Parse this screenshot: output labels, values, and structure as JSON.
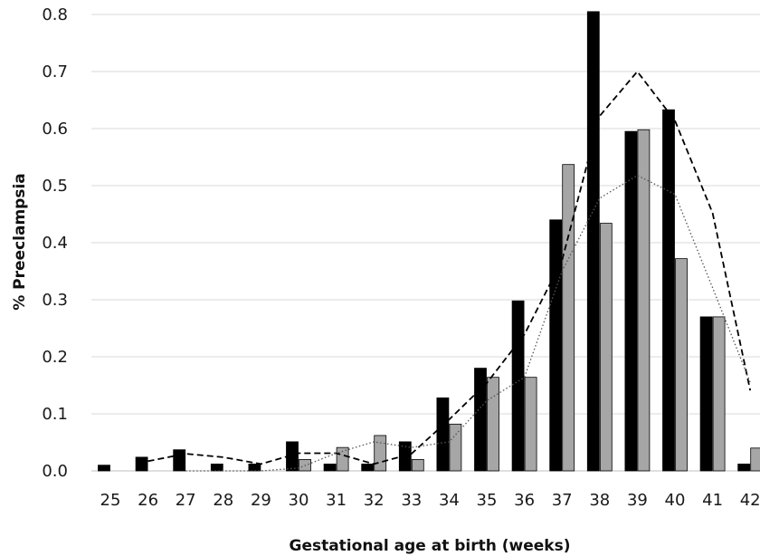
{
  "chart_data": {
    "type": "bar",
    "xlabel": "Gestational age at birth (weeks)",
    "ylabel": "% Preeclampsia",
    "categories": [
      "25",
      "26",
      "27",
      "28",
      "29",
      "30",
      "31",
      "32",
      "33",
      "34",
      "35",
      "36",
      "37",
      "38",
      "39",
      "40",
      "41",
      "42"
    ],
    "ylim": [
      0,
      0.8
    ],
    "yticks": [
      "0.0",
      "0.1",
      "0.2",
      "0.3",
      "0.4",
      "0.5",
      "0.6",
      "0.7",
      "0.8"
    ],
    "grid": true,
    "series": [
      {
        "kind": "bar",
        "color": "#000000",
        "values": [
          0.01,
          0.024,
          0.037,
          0.012,
          0.012,
          0.051,
          0.012,
          0.012,
          0.051,
          0.128,
          0.18,
          0.298,
          0.44,
          0.805,
          0.595,
          0.633,
          0.27,
          0.012
        ]
      },
      {
        "kind": "bar",
        "color": "#a6a6a6",
        "values": [
          0,
          0,
          0,
          0,
          0,
          0.02,
          0.041,
          0.062,
          0.02,
          0.082,
          0.164,
          0.164,
          0.537,
          0.434,
          0.598,
          0.372,
          0.27,
          0.04
        ]
      },
      {
        "kind": "line",
        "style": "dashed",
        "color": "#000000",
        "values": [
          null,
          0.017,
          0.03,
          0.024,
          0.012,
          0.031,
          0.031,
          0.012,
          0.03,
          0.09,
          0.154,
          0.239,
          0.369,
          0.622,
          0.7,
          0.614,
          0.452,
          0.141
        ]
      },
      {
        "kind": "line",
        "style": "dotted",
        "color": "#555555",
        "values": [
          null,
          null,
          0,
          0,
          0,
          0.005,
          0.031,
          0.051,
          0.041,
          0.051,
          0.123,
          0.164,
          0.35,
          0.478,
          0.518,
          0.485,
          0.321,
          0.155
        ]
      }
    ]
  }
}
